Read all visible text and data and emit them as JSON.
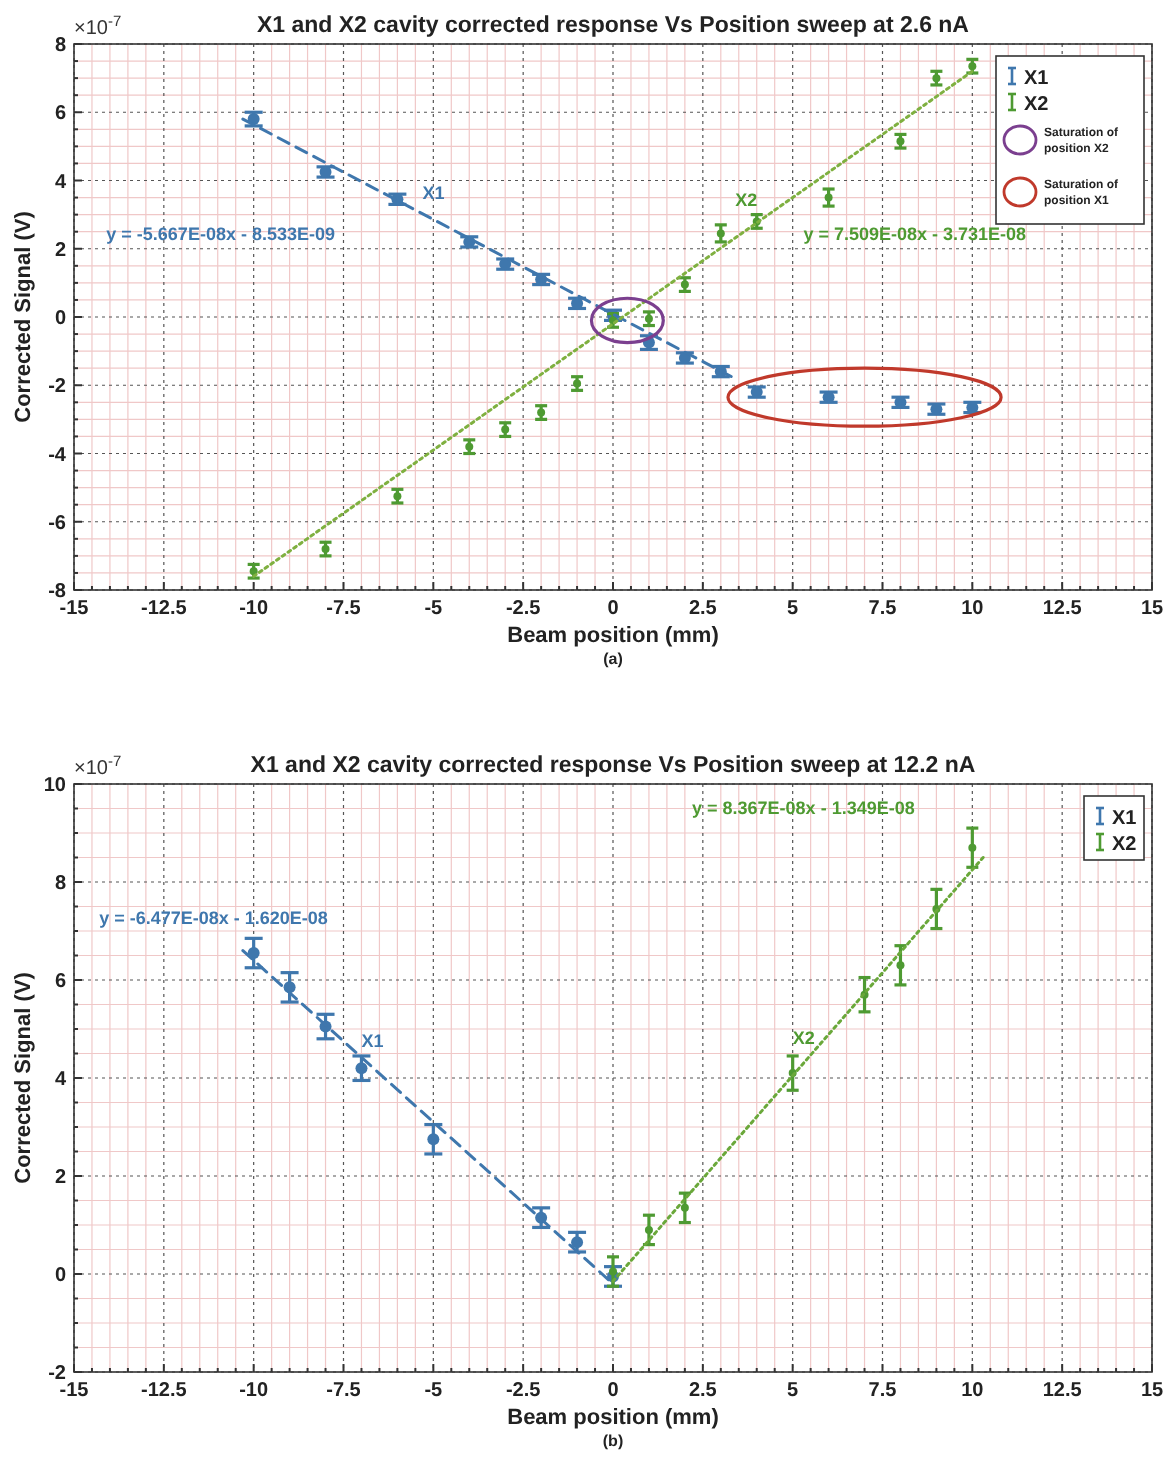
{
  "chart_data": [
    {
      "type": "scatter",
      "title": "X1 and X2 cavity corrected response Vs Position sweep at 2.6 nA",
      "xlabel": "Beam position (mm)",
      "ylabel": "Corrected Signal (V)",
      "xlim": [
        -15,
        15
      ],
      "xticks": [
        -15,
        {
          "value": -14.5,
          "label": null
        },
        {
          "value": -14,
          "label": null
        },
        {
          "value": -13.5,
          "label": null
        },
        {
          "value": -13,
          "label": null
        },
        -12.5,
        {
          "value": -12,
          "label": null
        },
        {
          "value": -11.5,
          "label": null
        },
        {
          "value": -11,
          "label": null
        },
        {
          "value": -10.5,
          "label": null
        },
        -10,
        {
          "value": -9.5,
          "label": null
        },
        {
          "value": -9,
          "label": null
        },
        {
          "value": -8.5,
          "label": null
        },
        {
          "value": -8,
          "label": null
        },
        -7.5,
        {
          "value": -7,
          "label": null
        },
        {
          "value": -6.5,
          "label": null
        },
        {
          "value": -6,
          "label": null
        },
        {
          "value": -5.5,
          "label": null
        },
        -5,
        {
          "value": -4.5,
          "label": null
        },
        {
          "value": -4,
          "label": null
        },
        {
          "value": -3.5,
          "label": null
        },
        {
          "value": -3,
          "label": null
        },
        -2.5,
        {
          "value": -2,
          "label": null
        },
        {
          "value": -1.5,
          "label": null
        },
        {
          "value": -1,
          "label": null
        },
        {
          "value": -0.5,
          "label": null
        },
        0,
        {
          "value": 0.5,
          "label": null
        },
        {
          "value": 1,
          "label": null
        },
        {
          "value": 1.5,
          "label": null
        },
        {
          "value": 2,
          "label": null
        },
        2.5,
        {
          "value": 3,
          "label": null
        },
        {
          "value": 3.5,
          "label": null
        },
        {
          "value": 4,
          "label": null
        },
        {
          "value": 4.5,
          "label": null
        },
        5,
        {
          "value": 5.5,
          "label": null
        },
        {
          "value": 6,
          "label": null
        },
        {
          "value": 6.5,
          "label": null
        },
        {
          "value": 7,
          "label": null
        },
        7.5,
        {
          "value": 8,
          "label": null
        },
        {
          "value": 8.5,
          "label": null
        },
        {
          "value": 9,
          "label": null
        },
        {
          "value": 9.5,
          "label": null
        },
        10,
        {
          "value": 10.5,
          "label": null
        },
        {
          "value": 11,
          "label": null
        },
        {
          "value": 11.5,
          "label": null
        },
        {
          "value": 12,
          "label": null
        },
        12.5,
        {
          "value": 13,
          "label": null
        },
        {
          "value": 13.5,
          "label": null
        },
        {
          "value": 14,
          "label": null
        },
        {
          "value": 14.5,
          "label": null
        },
        15
      ],
      "ylim": [
        -8,
        8
      ],
      "yticks": [
        -8,
        {
          "value": -7.5,
          "label": null
        },
        {
          "value": -7,
          "label": null
        },
        {
          "value": -6.5,
          "label": null
        },
        -6,
        {
          "value": -5.5,
          "label": null
        },
        {
          "value": -5,
          "label": null
        },
        {
          "value": -4.5,
          "label": null
        },
        -4,
        {
          "value": -3.5,
          "label": null
        },
        {
          "value": -3,
          "label": null
        },
        {
          "value": -2.5,
          "label": null
        },
        -2,
        {
          "value": -1.5,
          "label": null
        },
        {
          "value": -1,
          "label": null
        },
        {
          "value": -0.5,
          "label": null
        },
        0,
        {
          "value": 0.5,
          "label": null
        },
        {
          "value": 1,
          "label": null
        },
        {
          "value": 1.5,
          "label": null
        },
        2,
        {
          "value": 2.5,
          "label": null
        },
        {
          "value": 3,
          "label": null
        },
        {
          "value": 3.5,
          "label": null
        },
        4,
        {
          "value": 4.5,
          "label": null
        },
        {
          "value": 5,
          "label": null
        },
        {
          "value": 5.5,
          "label": null
        },
        6,
        {
          "value": 6.5,
          "label": null
        },
        {
          "value": 7,
          "label": null
        },
        {
          "value": 7.5,
          "label": null
        },
        8
      ],
      "grid": true,
      "legend": "top right",
      "series": [
        {
          "name": "X1",
          "type": "scatter",
          "color": "#3f77ad",
          "x": [
            -10,
            -8,
            -6,
            -4,
            -3,
            -2,
            -1,
            0,
            1,
            2,
            3,
            4,
            6,
            8,
            9,
            10
          ],
          "values": [
            5.8,
            4.25,
            3.45,
            2.2,
            1.55,
            1.1,
            0.4,
            0.05,
            -0.75,
            -1.2,
            -1.6,
            -2.2,
            -2.35,
            -2.5,
            -2.7,
            -2.65
          ],
          "errors": [
            0.2,
            0.15,
            0.15,
            0.15,
            0.15,
            0.15,
            0.15,
            0.15,
            0.2,
            0.15,
            0.15,
            0.15,
            0.15,
            0.15,
            0.15,
            0.15
          ]
        },
        {
          "name": "X2",
          "type": "scatter",
          "color": "#4e9a32",
          "x": [
            -10,
            -8,
            -6,
            -4,
            -3,
            -2,
            -1,
            0,
            1,
            2,
            3,
            4,
            6,
            8,
            9,
            10
          ],
          "values": [
            -7.45,
            -6.8,
            -5.25,
            -3.8,
            -3.3,
            -2.8,
            -1.95,
            -0.1,
            -0.05,
            0.95,
            2.45,
            2.8,
            3.5,
            5.15,
            7.0,
            7.35
          ],
          "errors": [
            0.2,
            0.2,
            0.2,
            0.2,
            0.2,
            0.2,
            0.2,
            0.2,
            0.2,
            0.2,
            0.25,
            0.2,
            0.25,
            0.2,
            0.2,
            0.2
          ]
        },
        {
          "type": "line",
          "color": "#3f77ad",
          "line_style": "dashed",
          "x": [
            -10.3,
            3.3
          ],
          "values": [
            5.8,
            -1.75
          ]
        },
        {
          "type": "line",
          "color": "#7fb040",
          "line_style": "dotted",
          "x": [
            -10,
            10
          ],
          "values": [
            -7.6,
            7.2
          ]
        }
      ],
      "annotations": [
        "×10$^{-7}$",
        "(a)",
        "y = -5.667E-08x - 8.533E-09",
        "X1",
        "X2",
        "y = 7.509E-08x - 3.731E-08",
        "Saturation of position X2",
        "Saturation of position X1"
      ]
    },
    {
      "type": "scatter",
      "title": "X1 and X2 cavity corrected response Vs Position sweep at 12.2 nA",
      "xlabel": "Beam position (mm)",
      "ylabel": "Corrected Signal (V)",
      "xlim": [
        -15,
        15
      ],
      "xticks": [
        -15,
        {
          "value": -14.5,
          "label": null
        },
        {
          "value": -14,
          "label": null
        },
        {
          "value": -13.5,
          "label": null
        },
        {
          "value": -13,
          "label": null
        },
        -12.5,
        {
          "value": -12,
          "label": null
        },
        {
          "value": -11.5,
          "label": null
        },
        {
          "value": -11,
          "label": null
        },
        {
          "value": -10.5,
          "label": null
        },
        -10,
        {
          "value": -9.5,
          "label": null
        },
        {
          "value": -9,
          "label": null
        },
        {
          "value": -8.5,
          "label": null
        },
        {
          "value": -8,
          "label": null
        },
        -7.5,
        {
          "value": -7,
          "label": null
        },
        {
          "value": -6.5,
          "label": null
        },
        {
          "value": -6,
          "label": null
        },
        {
          "value": -5.5,
          "label": null
        },
        -5,
        {
          "value": -4.5,
          "label": null
        },
        {
          "value": -4,
          "label": null
        },
        {
          "value": -3.5,
          "label": null
        },
        {
          "value": -3,
          "label": null
        },
        -2.5,
        {
          "value": -2,
          "label": null
        },
        {
          "value": -1.5,
          "label": null
        },
        {
          "value": -1,
          "label": null
        },
        {
          "value": -0.5,
          "label": null
        },
        0,
        {
          "value": 0.5,
          "label": null
        },
        {
          "value": 1,
          "label": null
        },
        {
          "value": 1.5,
          "label": null
        },
        {
          "value": 2,
          "label": null
        },
        2.5,
        {
          "value": 3,
          "label": null
        },
        {
          "value": 3.5,
          "label": null
        },
        {
          "value": 4,
          "label": null
        },
        {
          "value": 4.5,
          "label": null
        },
        5,
        {
          "value": 5.5,
          "label": null
        },
        {
          "value": 6,
          "label": null
        },
        {
          "value": 6.5,
          "label": null
        },
        {
          "value": 7,
          "label": null
        },
        7.5,
        {
          "value": 8,
          "label": null
        },
        {
          "value": 8.5,
          "label": null
        },
        {
          "value": 9,
          "label": null
        },
        {
          "value": 9.5,
          "label": null
        },
        10,
        {
          "value": 10.5,
          "label": null
        },
        {
          "value": 11,
          "label": null
        },
        {
          "value": 11.5,
          "label": null
        },
        {
          "value": 12,
          "label": null
        },
        12.5,
        {
          "value": 13,
          "label": null
        },
        {
          "value": 13.5,
          "label": null
        },
        {
          "value": 14,
          "label": null
        },
        {
          "value": 14.5,
          "label": null
        },
        15
      ],
      "ylim": [
        -2,
        10
      ],
      "yticks": [
        -2,
        {
          "value": -1.5,
          "label": null
        },
        {
          "value": -1,
          "label": null
        },
        {
          "value": -0.5,
          "label": null
        },
        0,
        {
          "value": 0.5,
          "label": null
        },
        {
          "value": 1,
          "label": null
        },
        {
          "value": 1.5,
          "label": null
        },
        2,
        {
          "value": 2.5,
          "label": null
        },
        {
          "value": 3,
          "label": null
        },
        {
          "value": 3.5,
          "label": null
        },
        4,
        {
          "value": 4.5,
          "label": null
        },
        {
          "value": 5,
          "label": null
        },
        {
          "value": 5.5,
          "label": null
        },
        6,
        {
          "value": 6.5,
          "label": null
        },
        {
          "value": 7,
          "label": null
        },
        {
          "value": 7.5,
          "label": null
        },
        8,
        {
          "value": 8.5,
          "label": null
        },
        {
          "value": 9,
          "label": null
        },
        {
          "value": 9.5,
          "label": null
        },
        10
      ],
      "grid": true,
      "legend": "top right",
      "series": [
        {
          "name": "X1",
          "type": "scatter",
          "color": "#3f77ad",
          "x": [
            -10,
            -9,
            -8,
            -7,
            -5,
            -2,
            -1,
            0
          ],
          "values": [
            6.55,
            5.85,
            5.05,
            4.2,
            2.75,
            1.15,
            0.65,
            -0.05
          ],
          "errors": [
            0.3,
            0.3,
            0.25,
            0.25,
            0.3,
            0.2,
            0.2,
            0.2
          ]
        },
        {
          "name": "X2",
          "type": "scatter",
          "color": "#4e9a32",
          "x": [
            0,
            1,
            2,
            5,
            7,
            8,
            9,
            10
          ],
          "values": [
            0.05,
            0.9,
            1.35,
            4.1,
            5.7,
            6.3,
            7.45,
            8.7
          ],
          "errors": [
            0.3,
            0.3,
            0.3,
            0.35,
            0.35,
            0.4,
            0.4,
            0.4
          ]
        },
        {
          "type": "line",
          "color": "#3f77ad",
          "line_style": "dashed",
          "x": [
            -10.3,
            0
          ],
          "values": [
            6.6,
            -0.2
          ]
        },
        {
          "type": "line",
          "color": "#6aa83a",
          "line_style": "dotted",
          "x": [
            0,
            10.3
          ],
          "values": [
            -0.15,
            8.5
          ]
        }
      ],
      "annotations": [
        "×10$^{-7}$",
        "(b)",
        "y = -6.477E-08x - 1.620E-08",
        "X1",
        "X2",
        "y = 8.367E-08x - 1.349E-08"
      ]
    }
  ]
}
